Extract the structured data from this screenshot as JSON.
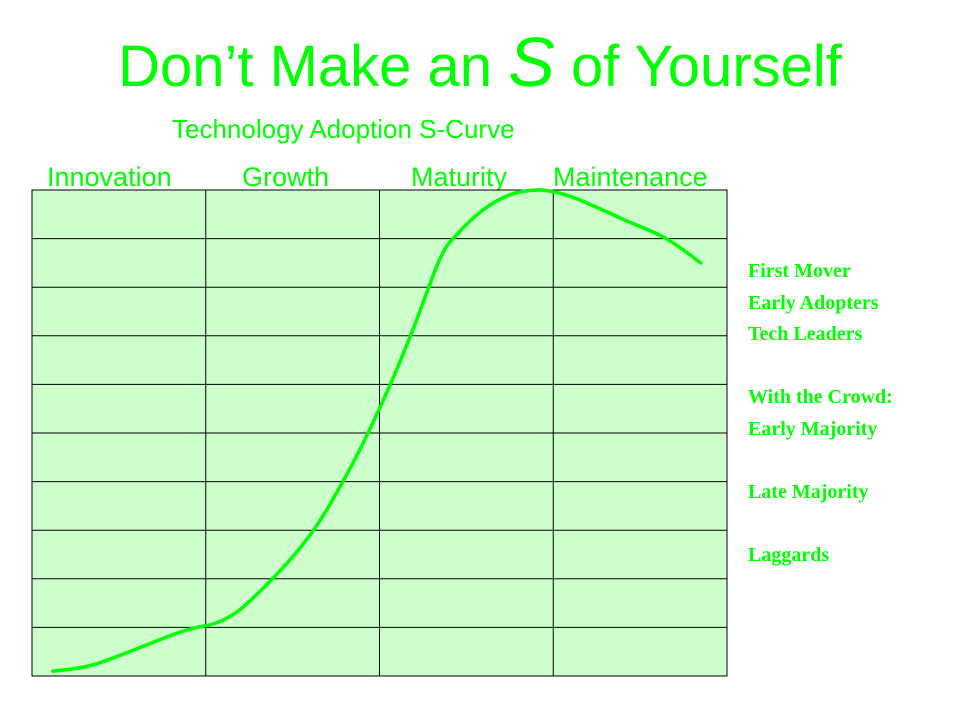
{
  "slide": {
    "title_pre": "Don’t Make an ",
    "title_s": "S",
    "title_post": " of Yourself",
    "subtitle": "Technology Adoption S-Curve",
    "phases": [
      "Innovation",
      "Growth",
      "Maturity",
      "Maintenance"
    ],
    "legend": [
      "First Mover",
      "Early Adopters",
      "Tech Leaders",
      "",
      "With the Crowd:",
      "Early Majority",
      "",
      "Late Majority",
      "",
      "Laggards"
    ]
  },
  "colors": {
    "text": "#00ff00",
    "grid_fill": "#ccffcc",
    "grid_line": "#000000",
    "curve": "#00ff00"
  },
  "chart_data": {
    "type": "line",
    "title": "Technology Adoption S-Curve",
    "categories": [
      "Innovation",
      "Growth",
      "Maturity",
      "Maintenance"
    ],
    "grid": {
      "columns": 4,
      "rows": 10
    },
    "xlim": [
      0,
      4
    ],
    "ylim": [
      0,
      10
    ],
    "series": [
      {
        "x": [
          0.12,
          0.37,
          0.85,
          1.1,
          1.3,
          1.6,
          1.85,
          2.05,
          2.2,
          2.35,
          2.45,
          2.6,
          2.75,
          2.9,
          3.02,
          3.15,
          3.4,
          3.65,
          3.85
        ],
        "y": [
          0.1,
          0.25,
          0.9,
          1.15,
          1.7,
          2.9,
          4.4,
          5.9,
          7.2,
          8.6,
          9.1,
          9.6,
          9.9,
          10.0,
          9.95,
          9.8,
          9.4,
          9.0,
          8.5
        ]
      }
    ]
  }
}
